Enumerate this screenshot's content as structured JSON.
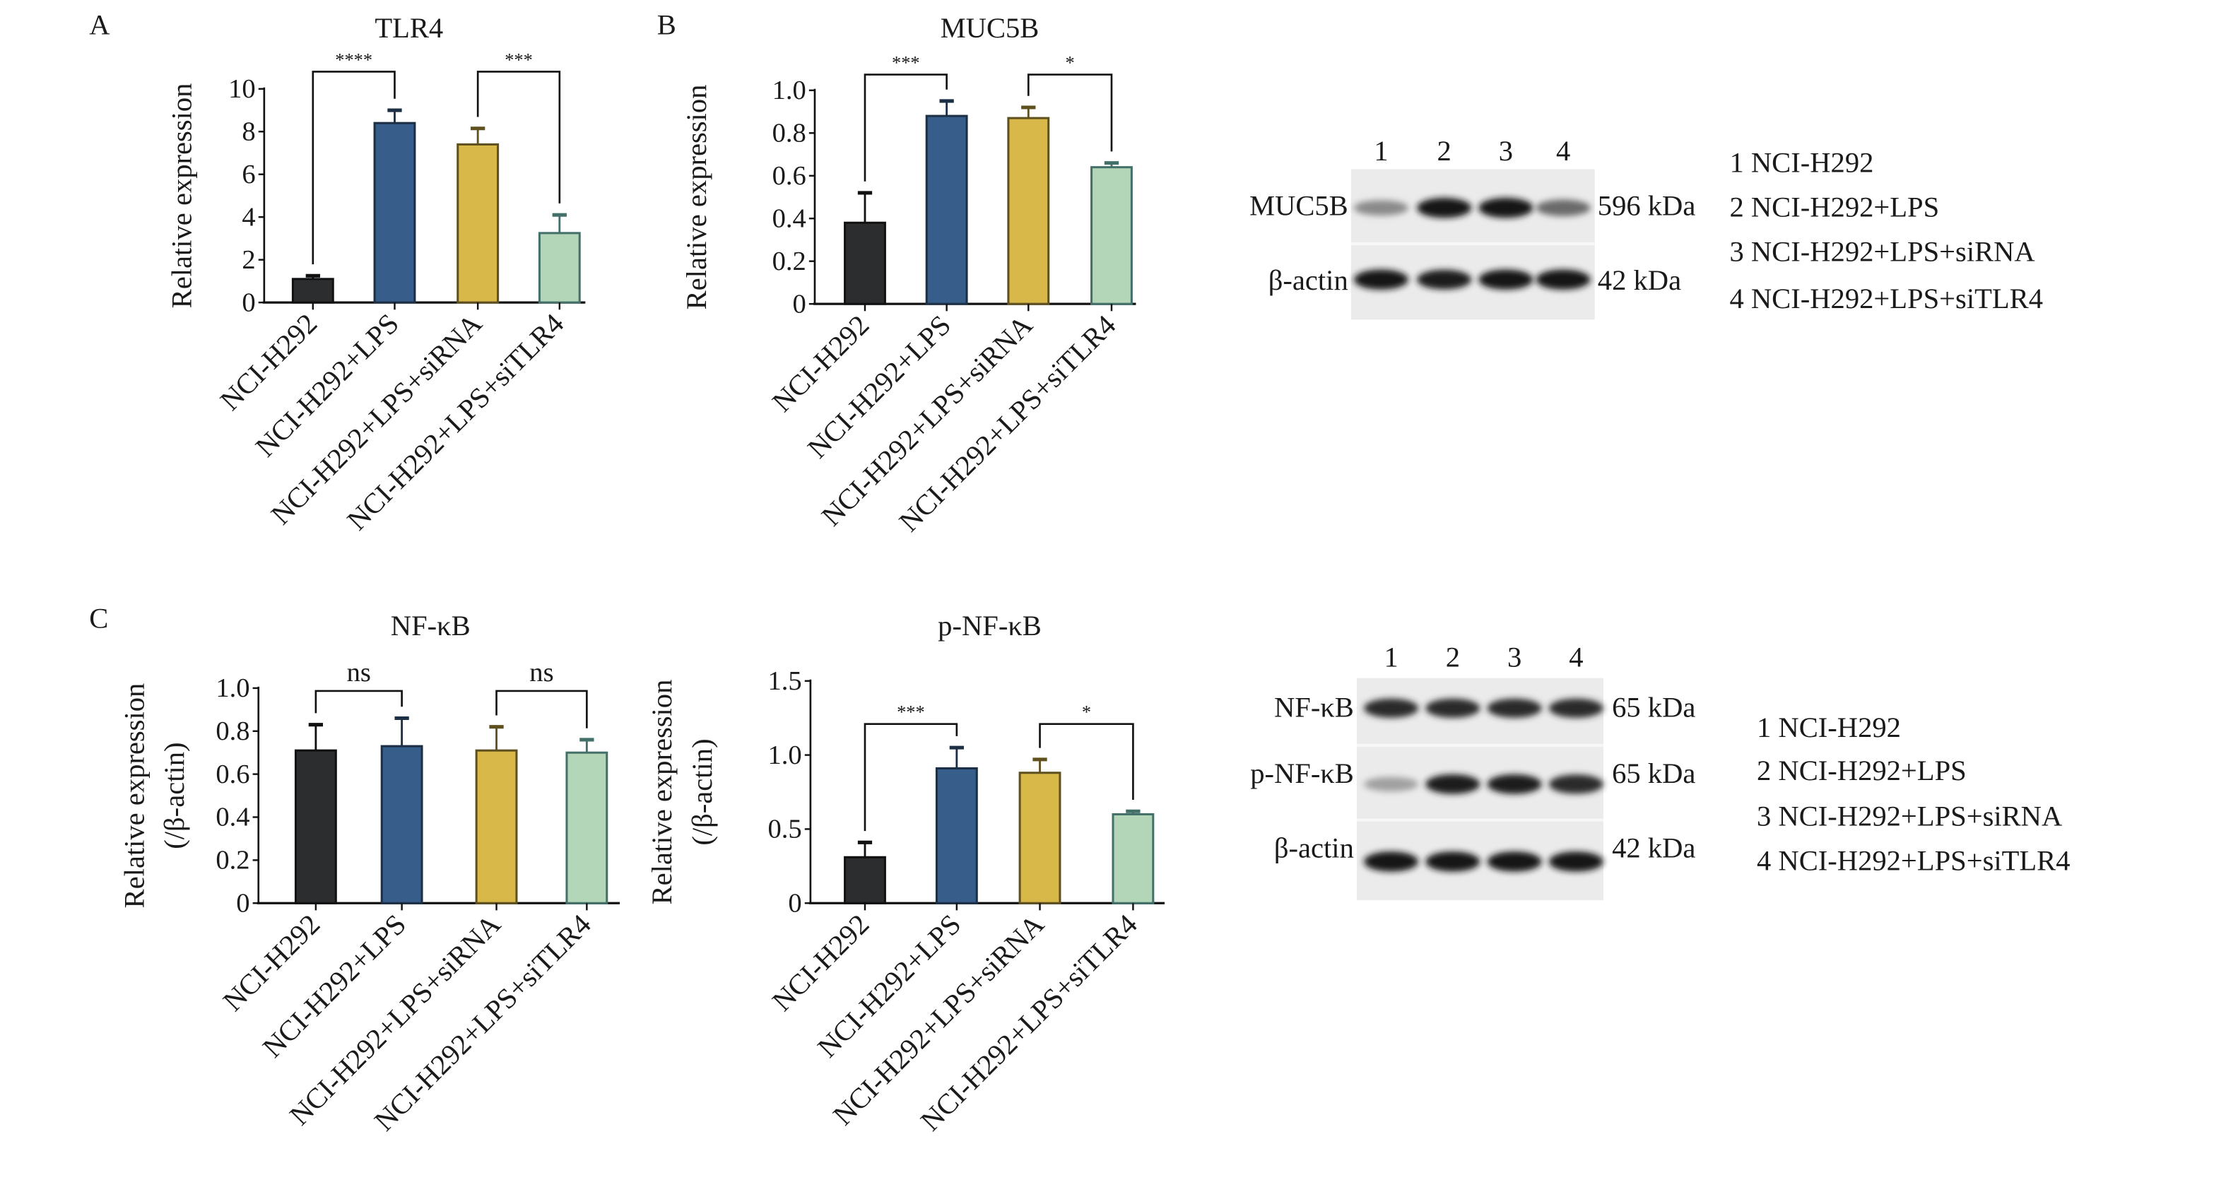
{
  "panel_labels": {
    "a": "A",
    "b": "B",
    "c": "C"
  },
  "colors": {
    "bars": [
      "#2b2d2f",
      "#375d8a",
      "#d9b84a",
      "#b4d6b8"
    ],
    "outlines": [
      "#111111",
      "#1c2f45",
      "#5f5020",
      "#44706a"
    ]
  },
  "chart_data": [
    {
      "type": "bar",
      "title": "TLR4",
      "ylabel": [
        "Relative expression"
      ],
      "ylim": [
        0,
        10
      ],
      "ticks": [
        "0",
        "2",
        "4",
        "6",
        "8",
        "10"
      ],
      "tick_values": [
        0,
        2,
        4,
        6,
        8,
        10
      ],
      "categories": [
        "NCI-H292",
        "NCI-H292+LPS",
        "NCI-H292+LPS+siRNA",
        "NCI-H292+LPS+siTLR4"
      ],
      "values": [
        1.1,
        8.4,
        7.4,
        3.25
      ],
      "error_upper": [
        1.25,
        9.0,
        8.15,
        4.1
      ],
      "significance": [
        {
          "from": 0,
          "to": 1,
          "label": "****"
        },
        {
          "from": 2,
          "to": 3,
          "label": "***"
        }
      ]
    },
    {
      "type": "bar",
      "title": "MUC5B",
      "ylabel": [
        "Relative expression"
      ],
      "ylim": [
        0,
        1.0
      ],
      "ticks": [
        "0",
        "0.2",
        "0.4",
        "0.6",
        "0.8",
        "1.0"
      ],
      "tick_values": [
        0,
        0.2,
        0.4,
        0.6,
        0.8,
        1.0
      ],
      "categories": [
        "NCI-H292",
        "NCI-H292+LPS",
        "NCI-H292+LPS+siRNA",
        "NCI-H292+LPS+siTLR4"
      ],
      "values": [
        0.38,
        0.88,
        0.87,
        0.64
      ],
      "error_upper": [
        0.52,
        0.95,
        0.92,
        0.66
      ],
      "significance": [
        {
          "from": 0,
          "to": 1,
          "label": "***"
        },
        {
          "from": 2,
          "to": 3,
          "label": "*"
        }
      ]
    },
    {
      "type": "bar",
      "title": "NF-κB",
      "ylabel": [
        "Relative expression",
        "(/β-actin)"
      ],
      "ylim": [
        0,
        1.0
      ],
      "ticks": [
        "0",
        "0.2",
        "0.4",
        "0.6",
        "0.8",
        "1.0"
      ],
      "tick_values": [
        0,
        0.2,
        0.4,
        0.6,
        0.8,
        1.0
      ],
      "categories": [
        "NCI-H292",
        "NCI-H292+LPS",
        "NCI-H292+LPS+siRNA",
        "NCI-H292+LPS+siTLR4"
      ],
      "values": [
        0.71,
        0.73,
        0.71,
        0.7
      ],
      "error_upper": [
        0.83,
        0.86,
        0.82,
        0.76
      ],
      "significance": [
        {
          "from": 0,
          "to": 1,
          "label": "ns"
        },
        {
          "from": 2,
          "to": 3,
          "label": "ns"
        }
      ]
    },
    {
      "type": "bar",
      "title": "p-NF-κB",
      "ylabel": [
        "Relative expression",
        "(/β-actin)"
      ],
      "ylim": [
        0,
        1.5
      ],
      "ticks": [
        "0",
        "0.5",
        "1.0",
        "1.5"
      ],
      "tick_values": [
        0,
        0.5,
        1.0,
        1.5
      ],
      "categories": [
        "NCI-H292",
        "NCI-H292+LPS",
        "NCI-H292+LPS+siRNA",
        "NCI-H292+LPS+siTLR4"
      ],
      "values": [
        0.31,
        0.91,
        0.88,
        0.6
      ],
      "error_upper": [
        0.41,
        1.05,
        0.97,
        0.62
      ],
      "significance": [
        {
          "from": 0,
          "to": 1,
          "label": "***"
        },
        {
          "from": 2,
          "to": 3,
          "label": "*"
        }
      ]
    }
  ],
  "blots": [
    {
      "lanes": [
        "1",
        "2",
        "3",
        "4"
      ],
      "rows": [
        {
          "protein": "MUC5B",
          "size": "596 kDa",
          "intensity": [
            0.45,
            1.0,
            1.0,
            0.6
          ]
        },
        {
          "protein": "β-actin",
          "size": "42 kDa",
          "intensity": [
            1.0,
            0.95,
            1.0,
            1.0
          ]
        }
      ],
      "legend": [
        "1 NCI-H292",
        "2 NCI-H292+LPS",
        "3 NCI-H292+LPS+siRNA",
        "4 NCI-H292+LPS+siTLR4"
      ]
    },
    {
      "lanes": [
        "1",
        "2",
        "3",
        "4"
      ],
      "rows": [
        {
          "protein": "NF-κB",
          "size": "65 kDa",
          "intensity": [
            0.9,
            0.9,
            0.9,
            0.9
          ]
        },
        {
          "protein": "p-NF-κB",
          "size": "65 kDa",
          "intensity": [
            0.35,
            0.95,
            0.95,
            0.9
          ]
        },
        {
          "protein": "β-actin",
          "size": "42 kDa",
          "intensity": [
            1.0,
            1.0,
            1.0,
            1.0
          ]
        }
      ],
      "legend": [
        "1 NCI-H292",
        "2 NCI-H292+LPS",
        "3 NCI-H292+LPS+siRNA",
        "4 NCI-H292+LPS+siTLR4"
      ]
    }
  ]
}
